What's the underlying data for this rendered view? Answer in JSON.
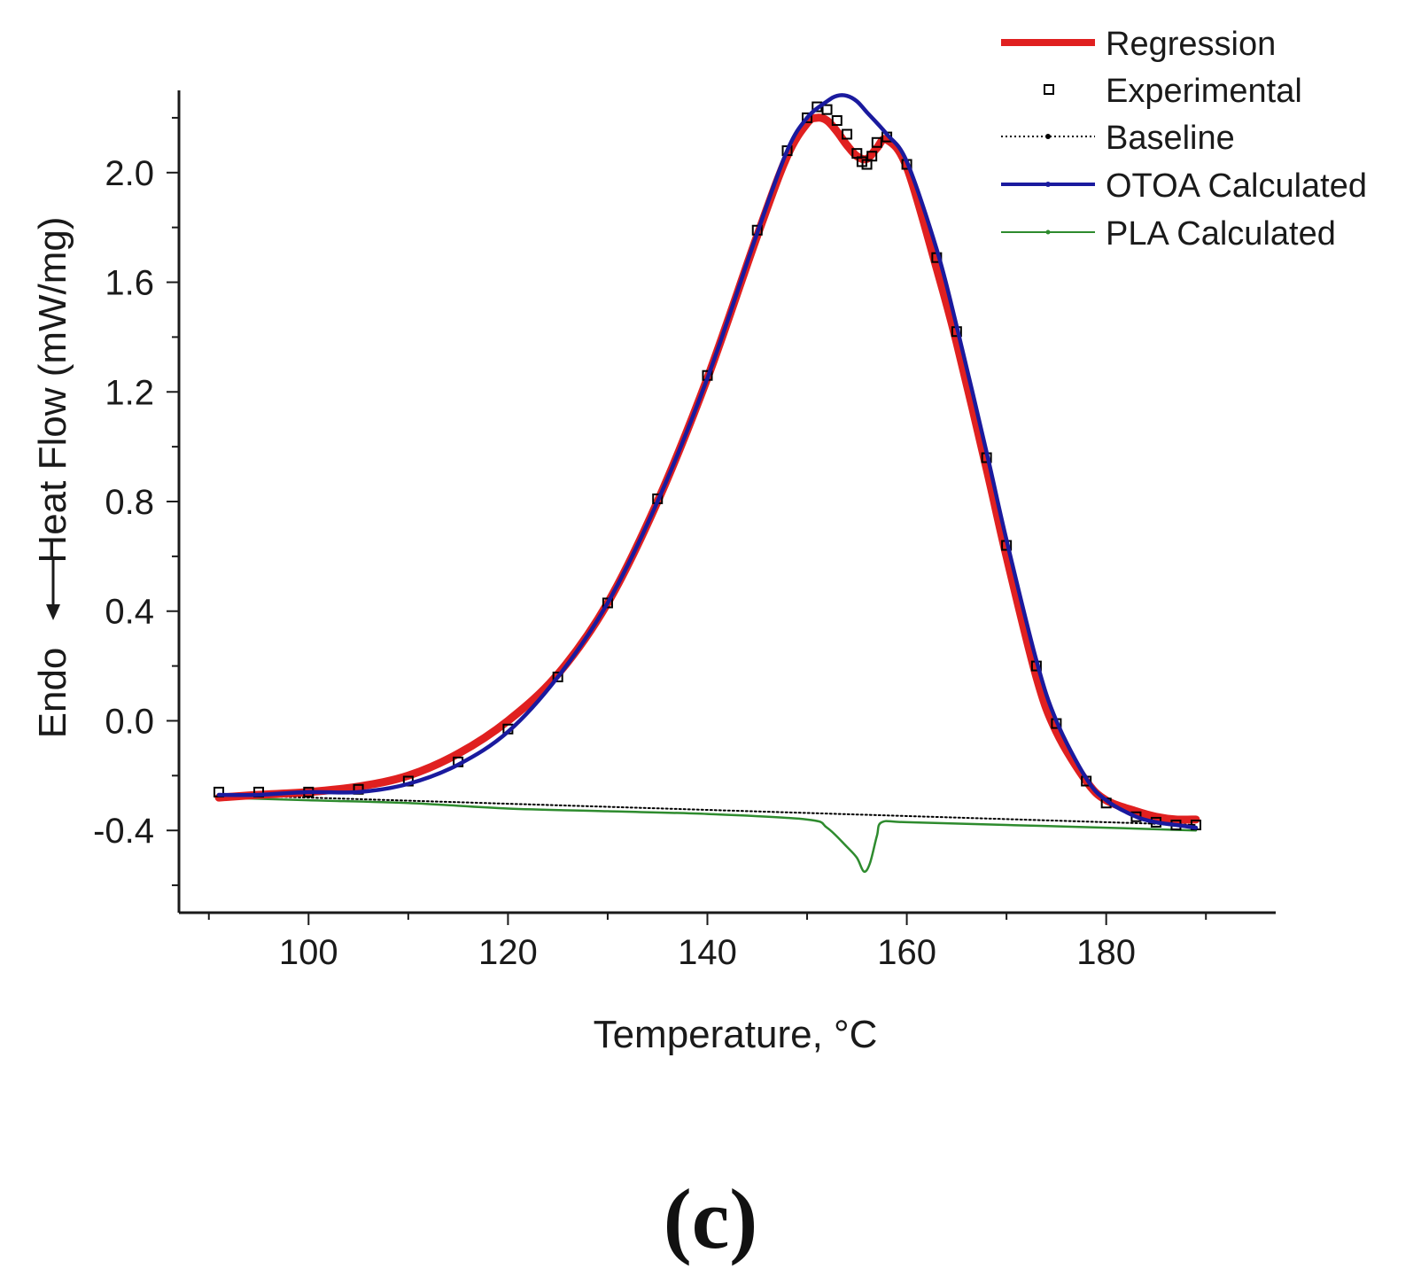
{
  "panel_label": "(c)",
  "chart_data": {
    "type": "line",
    "xlabel": "Temperature, °C",
    "ylabel": {
      "part1": "Endo",
      "part2": "Heat Flow (mW/mg)"
    },
    "xlim": [
      87,
      197
    ],
    "ylim": [
      -0.7,
      2.3
    ],
    "xticks": [
      100,
      120,
      140,
      160,
      180
    ],
    "xtick_labels": [
      "100",
      "120",
      "140",
      "160",
      "180"
    ],
    "yticks": [
      -0.4,
      0.0,
      0.4,
      0.8,
      1.2,
      1.6,
      2.0
    ],
    "ytick_labels": [
      "-0.4",
      "0.0",
      "0.4",
      "0.8",
      "1.2",
      "1.6",
      "2.0"
    ],
    "legend_position": "top-right",
    "series": [
      {
        "name": "Regression",
        "color": "#e02020",
        "style": "thick-line",
        "x": [
          91,
          95,
          100,
          105,
          110,
          115,
          120,
          125,
          130,
          135,
          140,
          145,
          148,
          150,
          151,
          152,
          153,
          154,
          155,
          156,
          157,
          158,
          160,
          163,
          165,
          168,
          170,
          173,
          175,
          178,
          180,
          183,
          185,
          187,
          189
        ],
        "y": [
          -0.28,
          -0.27,
          -0.26,
          -0.24,
          -0.2,
          -0.12,
          0.0,
          0.17,
          0.43,
          0.8,
          1.25,
          1.77,
          2.06,
          2.18,
          2.2,
          2.19,
          2.15,
          2.1,
          2.06,
          2.05,
          2.09,
          2.12,
          2.02,
          1.65,
          1.38,
          0.92,
          0.6,
          0.16,
          -0.04,
          -0.22,
          -0.29,
          -0.33,
          -0.35,
          -0.36,
          -0.36
        ]
      },
      {
        "name": "Experimental",
        "color": "#000000",
        "style": "open-square-markers",
        "x": [
          91,
          95,
          100,
          105,
          110,
          115,
          120,
          125,
          130,
          135,
          140,
          145,
          148,
          150,
          151,
          152,
          153,
          154,
          155,
          155.5,
          156,
          156.5,
          157,
          158,
          160,
          163,
          165,
          168,
          170,
          173,
          175,
          178,
          180,
          183,
          185,
          187,
          189
        ],
        "y": [
          -0.26,
          -0.26,
          -0.26,
          -0.25,
          -0.22,
          -0.15,
          -0.03,
          0.16,
          0.43,
          0.81,
          1.26,
          1.79,
          2.08,
          2.2,
          2.24,
          2.23,
          2.19,
          2.14,
          2.07,
          2.04,
          2.03,
          2.06,
          2.11,
          2.13,
          2.03,
          1.69,
          1.42,
          0.96,
          0.64,
          0.2,
          -0.01,
          -0.22,
          -0.3,
          -0.35,
          -0.37,
          -0.38,
          -0.38
        ]
      },
      {
        "name": "Baseline",
        "color": "#000000",
        "style": "dotted-line",
        "x": [
          91,
          189
        ],
        "y": [
          -0.27,
          -0.38
        ]
      },
      {
        "name": "OTOA Calculated",
        "color": "#1a1a9e",
        "style": "thick-line",
        "x": [
          91,
          95,
          100,
          105,
          110,
          115,
          120,
          125,
          130,
          135,
          140,
          145,
          148,
          150,
          152,
          153,
          154,
          155,
          156,
          158,
          160,
          163,
          165,
          168,
          170,
          173,
          175,
          178,
          180,
          183,
          185,
          187,
          189
        ],
        "y": [
          -0.27,
          -0.27,
          -0.26,
          -0.26,
          -0.23,
          -0.16,
          -0.04,
          0.16,
          0.43,
          0.8,
          1.25,
          1.78,
          2.08,
          2.2,
          2.26,
          2.28,
          2.28,
          2.26,
          2.22,
          2.14,
          2.04,
          1.72,
          1.44,
          0.98,
          0.66,
          0.22,
          0.0,
          -0.21,
          -0.29,
          -0.35,
          -0.37,
          -0.38,
          -0.39
        ]
      },
      {
        "name": "PLA Calculated",
        "color": "#2e8b2e",
        "style": "thin-line",
        "x": [
          91,
          100,
          110,
          120,
          130,
          140,
          150,
          152,
          154,
          155,
          155.7,
          156.3,
          157,
          157.5,
          160,
          170,
          180,
          189
        ],
        "y": [
          -0.28,
          -0.29,
          -0.3,
          -0.32,
          -0.33,
          -0.34,
          -0.36,
          -0.39,
          -0.46,
          -0.5,
          -0.55,
          -0.52,
          -0.42,
          -0.37,
          -0.37,
          -0.38,
          -0.39,
          -0.4
        ]
      }
    ]
  }
}
